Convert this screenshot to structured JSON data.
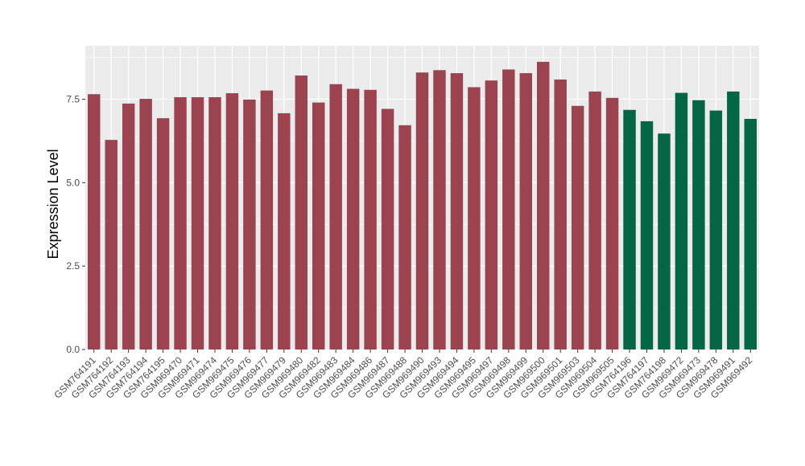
{
  "chart_data": {
    "type": "bar",
    "title": "",
    "xlabel": "",
    "ylabel": "Expression Level",
    "ylim": [
      0,
      9.1
    ],
    "yticks": [
      "0.0",
      "2.5",
      "5.0",
      "7.5"
    ],
    "grid": true,
    "legend": "none",
    "colors": {
      "group1": "#9b4450",
      "group2": "#046645",
      "panel": "#ebebeb",
      "grid": "#ffffff"
    },
    "categories": [
      "GSM764191",
      "GSM764192",
      "GSM764193",
      "GSM764194",
      "GSM764195",
      "GSM969470",
      "GSM969471",
      "GSM969474",
      "GSM969475",
      "GSM969476",
      "GSM969477",
      "GSM969479",
      "GSM969480",
      "GSM969482",
      "GSM969483",
      "GSM969484",
      "GSM969486",
      "GSM969487",
      "GSM969488",
      "GSM969490",
      "GSM969493",
      "GSM969494",
      "GSM969495",
      "GSM969497",
      "GSM969498",
      "GSM969499",
      "GSM969500",
      "GSM969501",
      "GSM969503",
      "GSM969504",
      "GSM969505",
      "GSM764196",
      "GSM764197",
      "GSM764198",
      "GSM969472",
      "GSM969473",
      "GSM969478",
      "GSM969491",
      "GSM969492"
    ],
    "values": [
      7.65,
      6.28,
      7.37,
      7.51,
      6.93,
      7.56,
      7.56,
      7.56,
      7.68,
      7.49,
      7.76,
      7.08,
      8.21,
      7.4,
      7.95,
      7.81,
      7.78,
      7.21,
      6.72,
      8.3,
      8.37,
      8.28,
      7.86,
      8.06,
      8.39,
      8.28,
      8.62,
      8.09,
      7.3,
      7.73,
      7.54,
      7.18,
      6.84,
      6.47,
      7.69,
      7.47,
      7.16,
      7.73,
      6.91
    ],
    "groups": [
      "group1",
      "group1",
      "group1",
      "group1",
      "group1",
      "group1",
      "group1",
      "group1",
      "group1",
      "group1",
      "group1",
      "group1",
      "group1",
      "group1",
      "group1",
      "group1",
      "group1",
      "group1",
      "group1",
      "group1",
      "group1",
      "group1",
      "group1",
      "group1",
      "group1",
      "group1",
      "group1",
      "group1",
      "group1",
      "group1",
      "group1",
      "group2",
      "group2",
      "group2",
      "group2",
      "group2",
      "group2",
      "group2",
      "group2"
    ]
  }
}
